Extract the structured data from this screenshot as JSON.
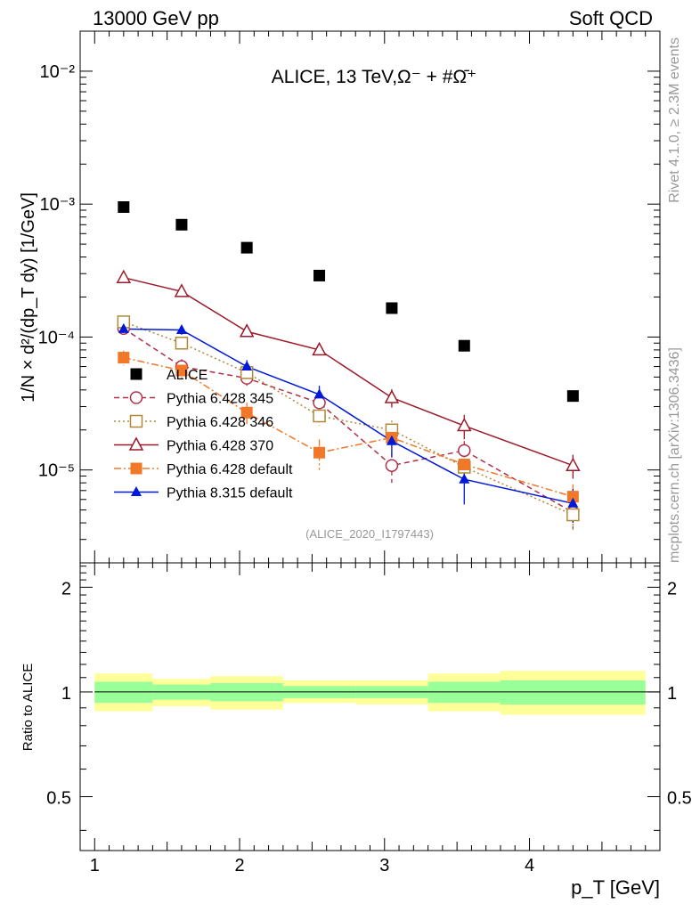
{
  "header": {
    "left": "13000 GeV pp",
    "right": "Soft QCD"
  },
  "side_labels": {
    "rivet": "Rivet 4.1.0, ≥ 2.3M events",
    "mcplots": "mcplots.cern.ch [arXiv:1306.3436]"
  },
  "chart_data": [
    {
      "type": "line",
      "title": "ALICE, 13 TeV,Ω⁻ + #Ω̄⁺",
      "watermark": "(ALICE_2020_I1797443)",
      "ylabel": "1/N × d²/(dp_T dy) [1/GeV]",
      "yscale": "log",
      "ylim": [
        2e-06,
        0.02
      ],
      "xlim": [
        0.9,
        4.9
      ],
      "y_tick_labels": [
        "10⁻⁵",
        "10⁻⁴",
        "10⁻³",
        "10⁻²"
      ],
      "y_tick_values": [
        1e-05,
        0.0001,
        0.001,
        0.01
      ],
      "x": [
        1.2,
        1.6,
        2.05,
        2.55,
        3.05,
        3.55,
        4.3
      ],
      "series": [
        {
          "name": "ALICE",
          "color": "#000000",
          "marker": "square",
          "style": "none",
          "values": [
            0.00095,
            0.0007,
            0.00047,
            0.00029,
            0.000165,
            8.6e-05,
            3.6e-05
          ],
          "errors": [
            0,
            0,
            0,
            0,
            0,
            0,
            0
          ]
        },
        {
          "name": "Pythia 6.428 345",
          "color": "#b03048",
          "marker": "circle-open",
          "style": "dashed",
          "values": [
            0.000116,
            6e-05,
            4.9e-05,
            3.2e-05,
            1.08e-05,
            1.4e-05,
            4.8e-06
          ],
          "errors": [
            1.2e-05,
            8e-06,
            6e-06,
            5e-06,
            2.8e-06,
            2.5e-06,
            1.2e-06
          ]
        },
        {
          "name": "Pythia 6.428 346",
          "color": "#b08838",
          "marker": "square-open",
          "style": "dotted",
          "values": [
            0.00013,
            9e-05,
            5.4e-05,
            2.55e-05,
            2e-05,
            1.05e-05,
            4.6e-06
          ],
          "errors": [
            1.2e-05,
            9e-06,
            6e-06,
            4e-06,
            3.5e-06,
            2.5e-06,
            1.2e-06
          ]
        },
        {
          "name": "Pythia 6.428 370",
          "color": "#9b1a2a",
          "marker": "triangle-open",
          "style": "solid",
          "values": [
            0.00028,
            0.00022,
            0.00011,
            8e-05,
            3.5e-05,
            2.15e-05,
            1.08e-05
          ],
          "errors": [
            1.4e-05,
            1e-05,
            7e-06,
            6e-06,
            5.5e-06,
            4.5e-06,
            2.2e-06
          ]
        },
        {
          "name": "Pythia 6.428 default",
          "color": "#f07828",
          "marker": "square",
          "style": "dashdot",
          "values": [
            7e-05,
            5.6e-05,
            2.7e-05,
            1.35e-05,
            1.75e-05,
            1.1e-05,
            6.3e-06
          ],
          "errors": [
            9e-06,
            8e-06,
            5e-06,
            3.5e-06,
            4e-06,
            3e-06,
            1.5e-06
          ]
        },
        {
          "name": "Pythia 8.315 default",
          "color": "#0018d8",
          "marker": "triangle",
          "style": "solid",
          "values": [
            0.000115,
            0.000113,
            6e-05,
            3.7e-05,
            1.65e-05,
            8.5e-06,
            5.6e-06
          ],
          "errors": [
            1e-05,
            9e-06,
            7e-06,
            6e-06,
            4e-06,
            3e-06,
            1.6e-06
          ]
        }
      ]
    },
    {
      "type": "area",
      "ylabel": "Ratio to ALICE",
      "xlabel": "p_T [GeV]",
      "ylim": [
        0.35,
        2.35
      ],
      "xlim": [
        0.9,
        4.9
      ],
      "x_tick_labels": [
        "1",
        "2",
        "3",
        "4"
      ],
      "x_tick_values": [
        1,
        2,
        3,
        4
      ],
      "y_tick_labels": [
        "0.5",
        "1",
        "2"
      ],
      "y_tick_values": [
        0.5,
        1,
        2
      ],
      "reference": 1,
      "bins": [
        {
          "lo": 1.0,
          "hi": 1.4,
          "inner": [
            0.93,
            1.07
          ],
          "outer": [
            0.88,
            1.13
          ]
        },
        {
          "lo": 1.4,
          "hi": 1.8,
          "inner": [
            0.95,
            1.05
          ],
          "outer": [
            0.91,
            1.09
          ]
        },
        {
          "lo": 1.8,
          "hi": 2.3,
          "inner": [
            0.94,
            1.06
          ],
          "outer": [
            0.89,
            1.11
          ]
        },
        {
          "lo": 2.3,
          "hi": 2.8,
          "inner": [
            0.96,
            1.04
          ],
          "outer": [
            0.93,
            1.08
          ]
        },
        {
          "lo": 2.8,
          "hi": 3.3,
          "inner": [
            0.96,
            1.04
          ],
          "outer": [
            0.92,
            1.08
          ]
        },
        {
          "lo": 3.3,
          "hi": 3.8,
          "inner": [
            0.93,
            1.07
          ],
          "outer": [
            0.88,
            1.13
          ]
        },
        {
          "lo": 3.8,
          "hi": 4.8,
          "inner": [
            0.92,
            1.08
          ],
          "outer": [
            0.86,
            1.15
          ]
        }
      ],
      "colors": {
        "inner": "#99ff99",
        "outer": "#ffff99"
      }
    }
  ]
}
